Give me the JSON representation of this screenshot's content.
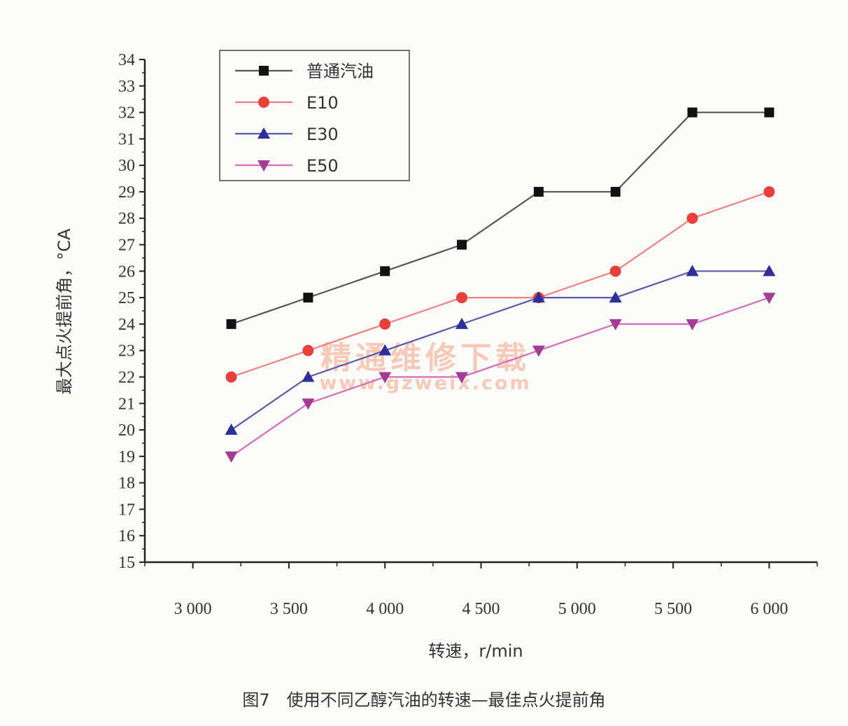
{
  "caption": "图7　使用不同乙醇汽油的转速—最佳点火提前角",
  "watermark": {
    "text": "精通维修下载",
    "url": "www.gzweix.com"
  },
  "chart_data": {
    "type": "line",
    "title": "",
    "xlabel": "转速，r/min",
    "ylabel": "最大点火提前角，°CA",
    "xlim": [
      2750,
      6250
    ],
    "ylim": [
      15,
      34
    ],
    "xticks": [
      {
        "value": 3000,
        "label": "3 000"
      },
      {
        "value": 3500,
        "label": "3 500"
      },
      {
        "value": 4000,
        "label": "4 000"
      },
      {
        "value": 4500,
        "label": "4 500"
      },
      {
        "value": 5000,
        "label": "5 000"
      },
      {
        "value": 5500,
        "label": "5 500"
      },
      {
        "value": 6000,
        "label": "6 000"
      }
    ],
    "yticks": [
      15,
      16,
      17,
      18,
      19,
      20,
      21,
      22,
      23,
      24,
      25,
      26,
      27,
      28,
      29,
      30,
      31,
      32,
      33,
      34
    ],
    "legend_position": "top-left",
    "grid": false,
    "x": [
      3200,
      3600,
      4000,
      4400,
      4800,
      5200,
      5600,
      6000
    ],
    "series": [
      {
        "name": "普通汽油",
        "values": [
          24,
          25,
          26,
          27,
          29,
          29,
          32,
          32
        ],
        "color": "#555555",
        "marker": "square",
        "marker_color": "#111111"
      },
      {
        "name": "E10",
        "values": [
          22,
          23,
          24,
          25,
          25,
          26,
          28,
          29
        ],
        "color": "#f08080",
        "marker": "circle",
        "marker_color": "#e8403a"
      },
      {
        "name": "E30",
        "values": [
          20,
          22,
          23,
          24,
          25,
          25,
          26,
          26
        ],
        "color": "#5a5aa8",
        "marker": "triangle-up",
        "marker_color": "#2f2f9a"
      },
      {
        "name": "E50",
        "values": [
          19,
          21,
          22,
          22,
          23,
          24,
          24,
          25
        ],
        "color": "#d66bb8",
        "marker": "triangle-down",
        "marker_color": "#a23d95"
      }
    ]
  }
}
